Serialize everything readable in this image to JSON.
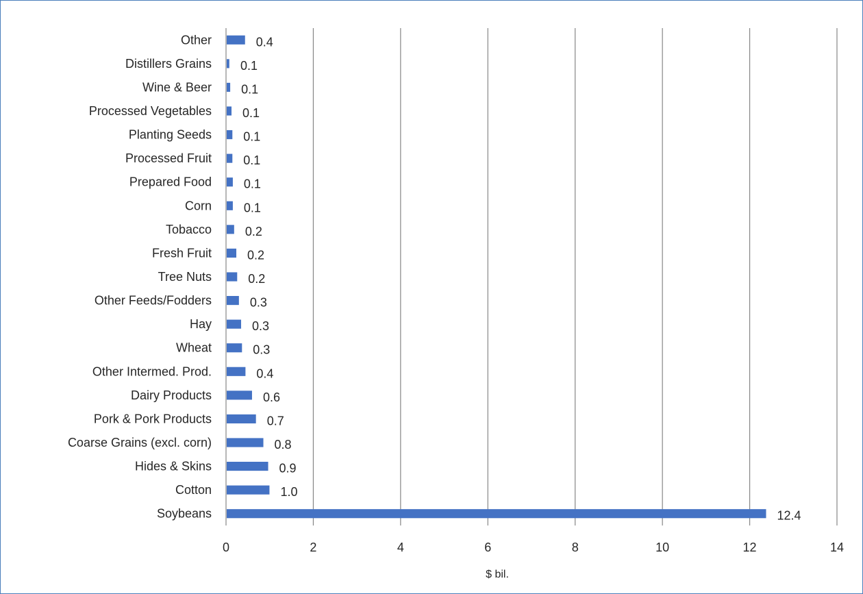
{
  "chart_data": {
    "type": "bar",
    "orientation": "horizontal",
    "title": "",
    "xlabel": "$ bil.",
    "ylabel": "",
    "xlim": [
      0,
      14
    ],
    "xticks": [
      0,
      2,
      4,
      6,
      8,
      10,
      12,
      14
    ],
    "grid": "vertical",
    "legend": "none",
    "bar_color": "#4472c4",
    "grid_color": "#868686",
    "categories": [
      "Other",
      "Distillers Grains",
      "Wine & Beer",
      "Processed Vegetables",
      "Planting Seeds",
      "Processed Fruit",
      "Prepared Food",
      "Corn",
      "Tobacco",
      "Fresh Fruit",
      "Tree Nuts",
      "Other Feeds/Fodders",
      "Hay",
      "Wheat",
      "Other Intermed. Prod.",
      "Dairy Products",
      "Pork & Pork Products",
      "Coarse Grains (excl. corn)",
      "Hides & Skins",
      "Cotton",
      "Soybeans"
    ],
    "values": [
      0.42,
      0.06,
      0.08,
      0.11,
      0.13,
      0.13,
      0.14,
      0.14,
      0.17,
      0.22,
      0.24,
      0.28,
      0.33,
      0.35,
      0.43,
      0.58,
      0.67,
      0.84,
      0.95,
      0.98,
      12.36
    ],
    "value_labels": [
      "0.4",
      "0.1",
      "0.1",
      "0.1",
      "0.1",
      "0.1",
      "0.1",
      "0.1",
      "0.2",
      "0.2",
      "0.2",
      "0.3",
      "0.3",
      "0.3",
      "0.4",
      "0.6",
      "0.7",
      "0.8",
      "0.9",
      "1.0",
      "12.4"
    ]
  }
}
